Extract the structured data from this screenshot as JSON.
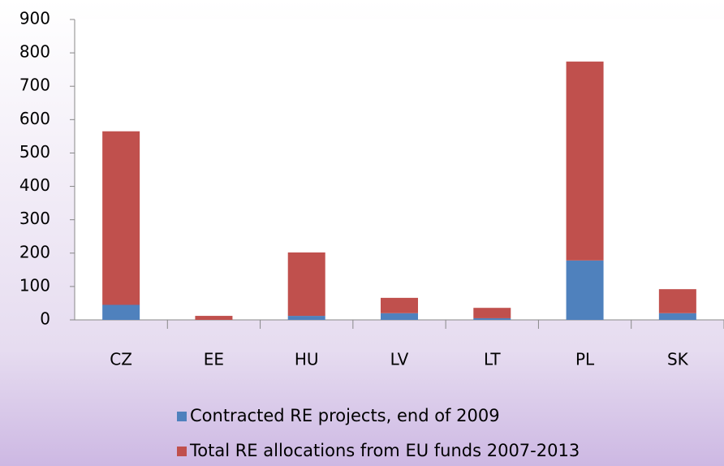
{
  "chart_data": {
    "type": "bar",
    "stacked": true,
    "categories": [
      "CZ",
      "EE",
      "HU",
      "LV",
      "LT",
      "PL",
      "SK"
    ],
    "series": [
      {
        "name": "Contracted RE projects, end of 2009",
        "color": "#4f81bd",
        "values": [
          45,
          0,
          12,
          20,
          5,
          178,
          20
        ]
      },
      {
        "name": "Total RE allocations from EU funds 2007-2013",
        "color": "#c0504d",
        "values": [
          520,
          12,
          190,
          46,
          31,
          596,
          72
        ]
      }
    ],
    "ylim": [
      0,
      900
    ],
    "yticks": [
      0,
      100,
      200,
      300,
      400,
      500,
      600,
      700,
      800,
      900
    ],
    "grid": false,
    "legend": "bottom"
  }
}
